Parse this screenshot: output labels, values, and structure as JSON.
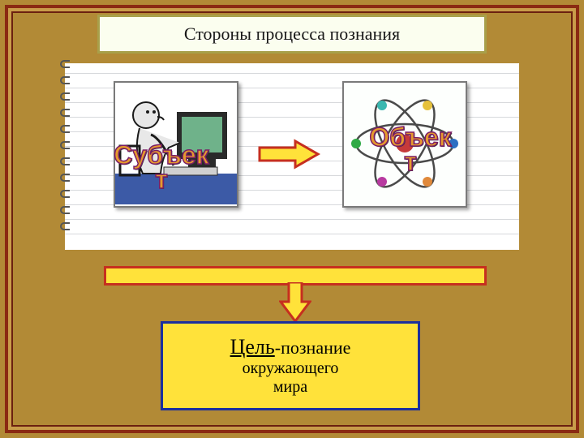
{
  "background_color": "#b28a36",
  "outer_frame": {
    "color": "#8a2a12",
    "width": 4,
    "inset": 6,
    "fill": "#c99c4a"
  },
  "inner_frame": {
    "color": "#6b2010",
    "width": 2,
    "inset": 14
  },
  "title": {
    "text": "Стороны процесса познания",
    "bg": "#fbfeef",
    "border": "#a8a04a",
    "color": "#171717",
    "fontsize": 22
  },
  "notepad": {
    "line_color": "#d7d9dc",
    "line_gap": 18,
    "line_count": 12
  },
  "cards": {
    "border": "#7a7a7a",
    "left": {
      "illustration": "person-at-computer",
      "svg_colors": {
        "desk": "#3c5aa6",
        "monitor": "#6fb28a",
        "monitor_frame": "#2a2a2a",
        "skin": "#e8e8e8",
        "outline": "#1a1a1a"
      }
    },
    "right": {
      "illustration": "atom",
      "svg_colors": {
        "nucleus": "#c63a3a",
        "orbits": "#4a4a4a",
        "electron1": "#2c6fc2",
        "electron2": "#2faa45",
        "electron3": "#e6c13a",
        "electron4": "#b83aa0",
        "electron5": "#3ab8b0",
        "electron6": "#e0893a"
      }
    }
  },
  "wordart": {
    "fill": "#e59a2e",
    "stroke": "#7a1d66",
    "left_text_top": "Субъек",
    "left_text_bottom": "т",
    "right_text_top": "Объек",
    "right_text_bottom": "т",
    "fontsize": 32
  },
  "arrow_right": {
    "fill": "#ffe23a",
    "stroke": "#c62f1f",
    "stroke_width": 3
  },
  "bar": {
    "fill": "#ffe23a",
    "border": "#c62f1f"
  },
  "down_arrow": {
    "fill": "#ffe23a",
    "stroke": "#c62f1f",
    "stroke_width": 3
  },
  "goal": {
    "bg": "#ffe23a",
    "border": "#1b2f9e",
    "line1_bold": "Цель",
    "line1_rest": "-познание",
    "line2": "окружающего",
    "line3": "мира",
    "font_bold": 26,
    "font_rest": 22,
    "font_sub": 20
  }
}
